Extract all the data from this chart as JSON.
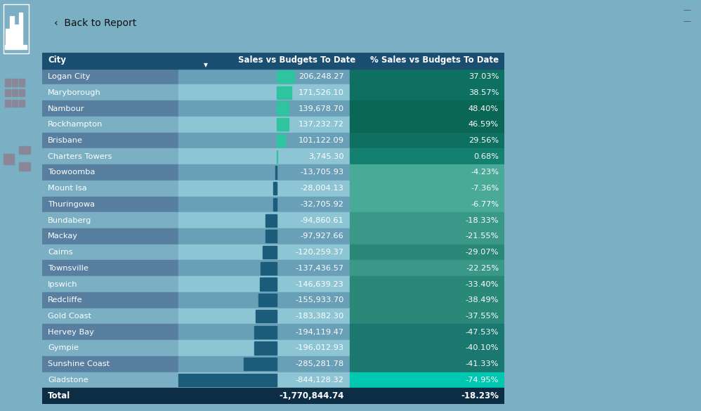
{
  "cities": [
    "Logan City",
    "Maryborough",
    "Nambour",
    "Rockhampton",
    "Brisbane",
    "Charters Towers",
    "Toowoomba",
    "Mount Isa",
    "Thuringowa",
    "Bundaberg",
    "Mackay",
    "Cairns",
    "Townsville",
    "Ipswich",
    "Redcliffe",
    "Gold Coast",
    "Hervey Bay",
    "Gympie",
    "Sunshine Coast",
    "Gladstone"
  ],
  "sales_vs_budget": [
    206248.27,
    171526.1,
    139678.7,
    137232.72,
    101122.09,
    3745.3,
    -13705.93,
    -28004.13,
    -32705.92,
    -94860.61,
    -97927.66,
    -120259.37,
    -137436.57,
    -146639.23,
    -155933.7,
    -183382.3,
    -194119.47,
    -196012.93,
    -285281.78,
    -844128.32
  ],
  "pct_sales_vs_budget": [
    "37.03%",
    "38.57%",
    "48.40%",
    "46.59%",
    "29.56%",
    "0.68%",
    "-4.23%",
    "-7.36%",
    "-6.77%",
    "-18.33%",
    "-21.55%",
    "-29.07%",
    "-22.25%",
    "-33.40%",
    "-38.49%",
    "-37.55%",
    "-47.53%",
    "-40.10%",
    "-41.33%",
    "-74.95%"
  ],
  "total_sales": "-1,770,844.74",
  "total_pct": "-18.23%",
  "sidebar_bg": "#1a1a2e",
  "topbar_bg": "#f5f5f5",
  "header_bg": "#1b4f72",
  "table_bg_even": "#5b9ab5",
  "table_bg_odd": "#7fb9cc",
  "col2_bg_even": "#6ba8be",
  "col2_bg_odd": "#8ec5d6",
  "total_bg": "#0d2d45",
  "right_bg": "#7bafc4",
  "bar_positive": "#2ec4a0",
  "bar_negative": "#1a5c7a"
}
